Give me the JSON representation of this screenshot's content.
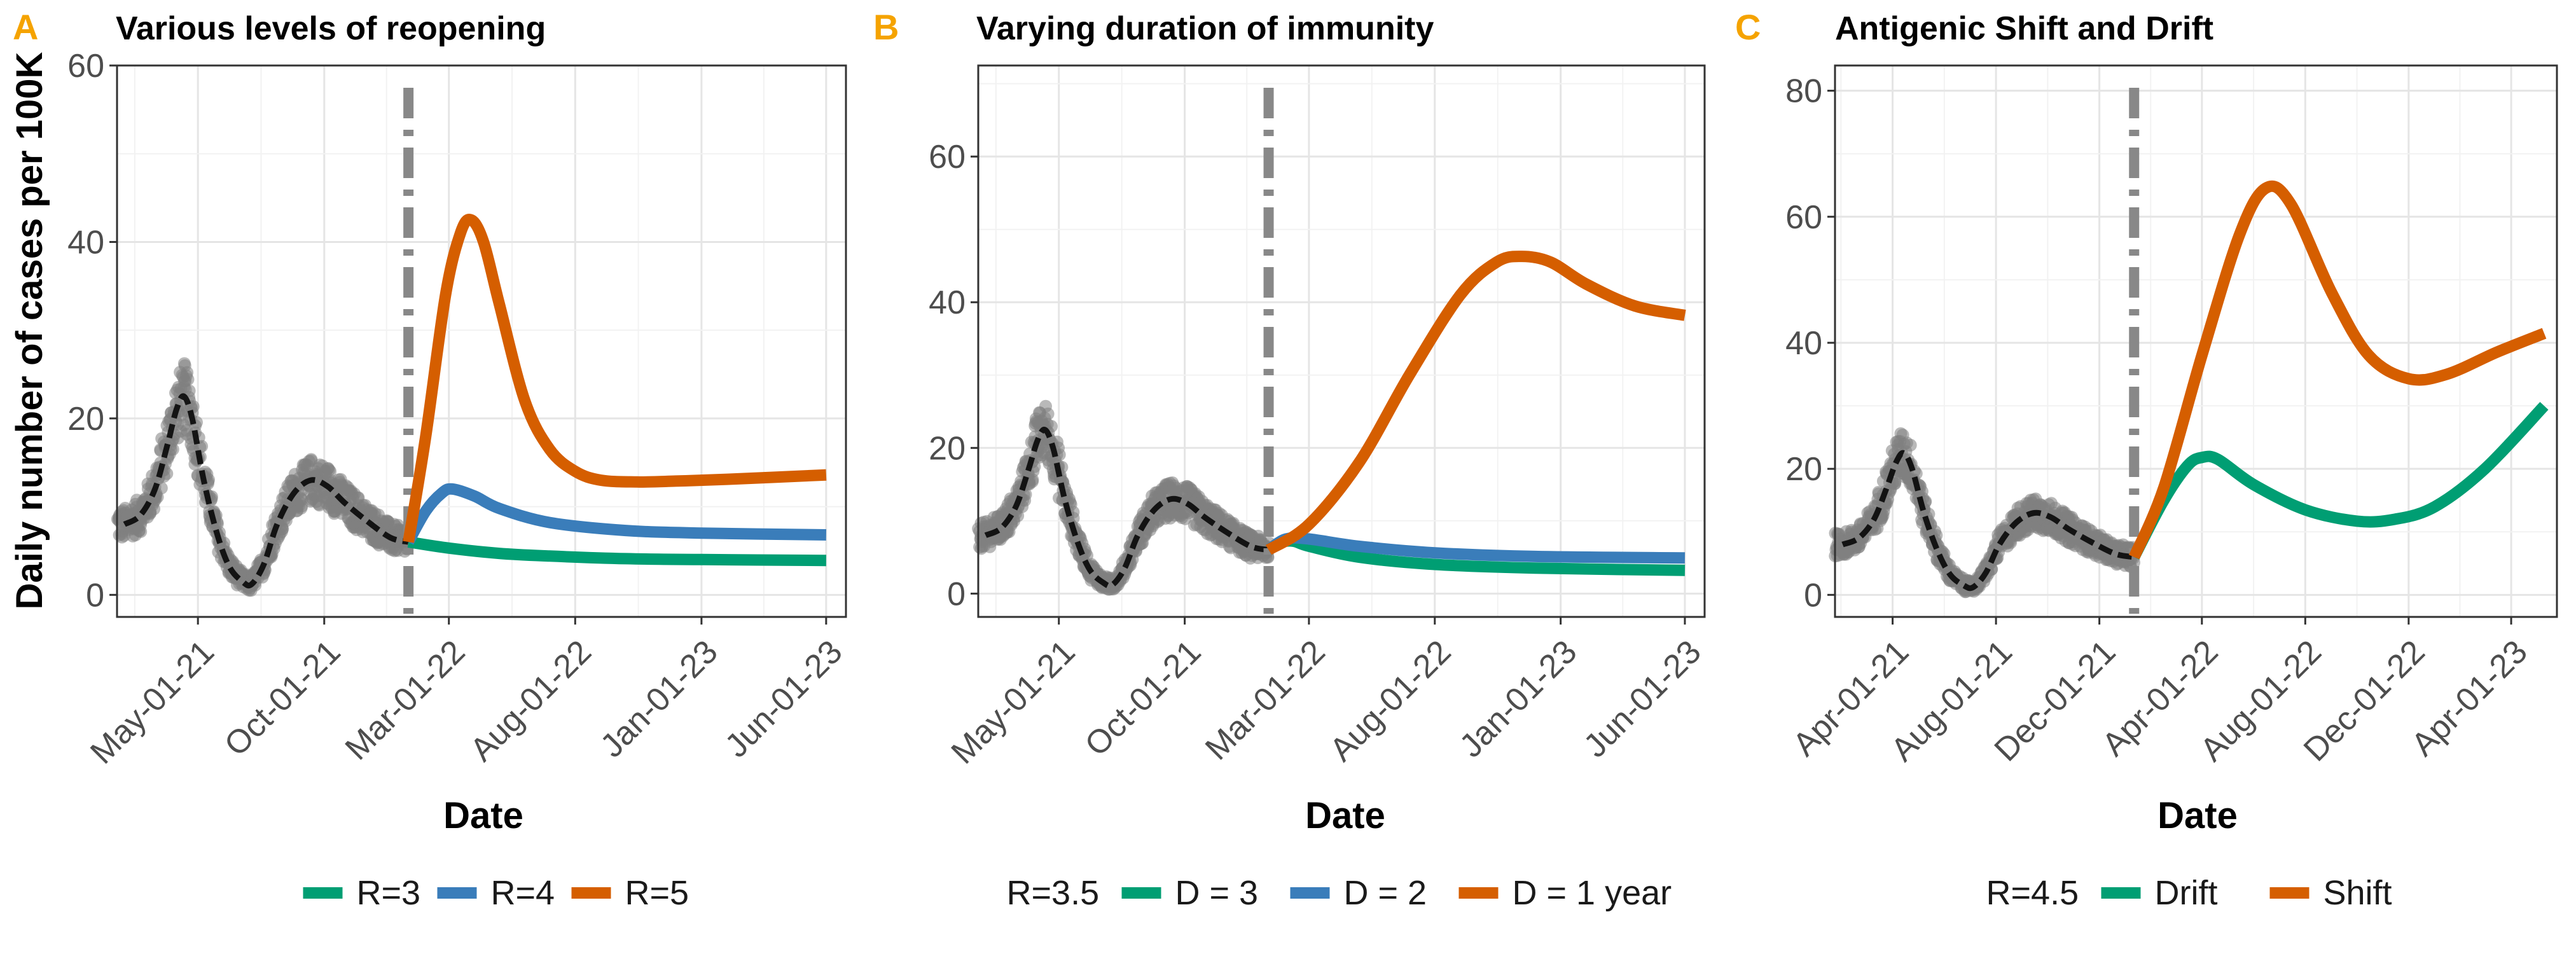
{
  "ylabel": "Daily number of cases per 100K",
  "colors": {
    "observed": "#808080",
    "fit": "#000000",
    "reopen_line": "#888888",
    "green": "#009E73",
    "blue": "#3A7DBA",
    "orange": "#D55E00",
    "panel_letter": "#F5A300"
  },
  "chart_data": [
    {
      "panel": "A",
      "type": "line",
      "title": "Various levels of reopening",
      "xlabel": "Date",
      "ylabel": "Daily number of cases per 100K",
      "x_ticks": [
        "May-01-21",
        "Oct-01-21",
        "Mar-01-22",
        "Aug-01-22",
        "Jan-01-23",
        "Jun-01-23"
      ],
      "y_ticks": [
        0,
        20,
        40,
        60
      ],
      "ylim": [
        -2.5,
        60
      ],
      "xlim": [
        "2021-01-23",
        "2023-06-25"
      ],
      "reopening_date": "2022-01-11",
      "legend_prefix": "",
      "legend": [
        "R=3",
        "R=4",
        "R=5"
      ],
      "observed_fit": [
        [
          "2021-02-01",
          8
        ],
        [
          "2021-02-20",
          9
        ],
        [
          "2021-03-10",
          12
        ],
        [
          "2021-03-25",
          17
        ],
        [
          "2021-04-05",
          21
        ],
        [
          "2021-04-14",
          22.5
        ],
        [
          "2021-04-24",
          20
        ],
        [
          "2021-05-08",
          13
        ],
        [
          "2021-05-24",
          7
        ],
        [
          "2021-06-08",
          3.2
        ],
        [
          "2021-06-24",
          1.5
        ],
        [
          "2021-07-05",
          1.2
        ],
        [
          "2021-07-20",
          3.5
        ],
        [
          "2021-08-05",
          8
        ],
        [
          "2021-08-25",
          11.5
        ],
        [
          "2021-09-15",
          13
        ],
        [
          "2021-10-05",
          12.3
        ],
        [
          "2021-10-25",
          10.5
        ],
        [
          "2021-11-20",
          8.5
        ],
        [
          "2021-12-20",
          6.5
        ],
        [
          "2022-01-11",
          6
        ]
      ],
      "series": [
        {
          "name": "R=3",
          "color": "green",
          "points": [
            [
              "2022-01-11",
              6
            ],
            [
              "2022-03-01",
              5.3
            ],
            [
              "2022-05-01",
              4.7
            ],
            [
              "2022-07-01",
              4.4
            ],
            [
              "2022-10-01",
              4.1
            ],
            [
              "2023-01-01",
              4.0
            ],
            [
              "2023-06-01",
              3.9
            ]
          ]
        },
        {
          "name": "R=4",
          "color": "blue",
          "points": [
            [
              "2022-01-11",
              6
            ],
            [
              "2022-02-01",
              9.5
            ],
            [
              "2022-02-20",
              11.5
            ],
            [
              "2022-03-05",
              12
            ],
            [
              "2022-04-01",
              11.2
            ],
            [
              "2022-05-01",
              9.8
            ],
            [
              "2022-07-01",
              8.2
            ],
            [
              "2022-10-01",
              7.3
            ],
            [
              "2023-01-01",
              7.0
            ],
            [
              "2023-06-01",
              6.8
            ]
          ]
        },
        {
          "name": "R=5",
          "color": "orange",
          "points": [
            [
              "2022-01-11",
              6
            ],
            [
              "2022-02-01",
              18
            ],
            [
              "2022-02-25",
              34
            ],
            [
              "2022-03-15",
              41
            ],
            [
              "2022-03-28",
              42.5
            ],
            [
              "2022-04-12",
              40
            ],
            [
              "2022-05-01",
              33
            ],
            [
              "2022-06-01",
              22
            ],
            [
              "2022-07-01",
              16.5
            ],
            [
              "2022-08-01",
              14
            ],
            [
              "2022-09-01",
              13
            ],
            [
              "2022-10-15",
              12.8
            ],
            [
              "2022-12-01",
              12.9
            ],
            [
              "2023-02-01",
              13.1
            ],
            [
              "2023-06-01",
              13.6
            ]
          ]
        }
      ]
    },
    {
      "panel": "B",
      "type": "line",
      "title": "Varying duration of immunity",
      "xlabel": "Date",
      "ylabel": "",
      "x_ticks": [
        "May-01-21",
        "Oct-01-21",
        "Mar-01-22",
        "Aug-01-22",
        "Jan-01-23",
        "Jun-01-23"
      ],
      "y_ticks": [
        0,
        20,
        40,
        60
      ],
      "ylim": [
        -3.2,
        72.5
      ],
      "xlim": [
        "2021-01-23",
        "2023-06-25"
      ],
      "reopening_date": "2022-01-11",
      "legend_prefix": "R=3.5",
      "legend": [
        "D = 3",
        "D = 2",
        "D = 1 year"
      ],
      "observed_fit": [
        [
          "2021-02-01",
          8
        ],
        [
          "2021-02-20",
          9
        ],
        [
          "2021-03-10",
          12
        ],
        [
          "2021-03-25",
          17
        ],
        [
          "2021-04-05",
          21
        ],
        [
          "2021-04-14",
          22.5
        ],
        [
          "2021-04-24",
          20
        ],
        [
          "2021-05-08",
          13
        ],
        [
          "2021-05-24",
          7
        ],
        [
          "2021-06-08",
          3.2
        ],
        [
          "2021-06-24",
          1.5
        ],
        [
          "2021-07-05",
          1.2
        ],
        [
          "2021-07-20",
          3.5
        ],
        [
          "2021-08-05",
          8
        ],
        [
          "2021-08-25",
          11.5
        ],
        [
          "2021-09-15",
          13
        ],
        [
          "2021-10-05",
          12.3
        ],
        [
          "2021-10-25",
          10.5
        ],
        [
          "2021-11-20",
          8.5
        ],
        [
          "2021-12-20",
          6.5
        ],
        [
          "2022-01-11",
          6
        ]
      ],
      "series": [
        {
          "name": "D = 3",
          "color": "green",
          "points": [
            [
              "2022-01-11",
              6
            ],
            [
              "2022-01-25",
              7.0
            ],
            [
              "2022-02-10",
              7.2
            ],
            [
              "2022-03-01",
              6.5
            ],
            [
              "2022-05-01",
              5.0
            ],
            [
              "2022-08-01",
              4.0
            ],
            [
              "2022-12-01",
              3.5
            ],
            [
              "2023-06-01",
              3.2
            ]
          ]
        },
        {
          "name": "D = 2",
          "color": "blue",
          "points": [
            [
              "2022-01-11",
              6
            ],
            [
              "2022-02-01",
              7.5
            ],
            [
              "2022-03-01",
              7.5
            ],
            [
              "2022-05-01",
              6.5
            ],
            [
              "2022-08-01",
              5.6
            ],
            [
              "2022-12-01",
              5.1
            ],
            [
              "2023-06-01",
              4.9
            ]
          ]
        },
        {
          "name": "D = 1 year",
          "color": "orange",
          "points": [
            [
              "2022-01-11",
              6
            ],
            [
              "2022-03-01",
              9.5
            ],
            [
              "2022-05-01",
              18
            ],
            [
              "2022-07-01",
              30
            ],
            [
              "2022-09-01",
              41
            ],
            [
              "2022-10-15",
              45.5
            ],
            [
              "2022-11-15",
              46.3
            ],
            [
              "2022-12-20",
              45.5
            ],
            [
              "2023-02-01",
              42.5
            ],
            [
              "2023-04-01",
              39.5
            ],
            [
              "2023-06-01",
              38.2
            ]
          ]
        }
      ]
    },
    {
      "panel": "C",
      "type": "line",
      "title": "Antigenic Shift and Drift",
      "xlabel": "Date",
      "ylabel": "",
      "x_ticks": [
        "Apr-01-21",
        "Aug-01-21",
        "Dec-01-21",
        "Apr-01-22",
        "Aug-01-22",
        "Dec-01-22",
        "Apr-01-23"
      ],
      "y_ticks": [
        0,
        20,
        40,
        60,
        80
      ],
      "ylim": [
        -3.5,
        84
      ],
      "xlim": [
        "2021-01-23",
        "2023-05-25"
      ],
      "reopening_date": "2022-01-11",
      "legend_prefix": "R=4.5",
      "legend": [
        "Drift",
        "Shift"
      ],
      "observed_fit": [
        [
          "2021-02-01",
          8
        ],
        [
          "2021-02-20",
          9
        ],
        [
          "2021-03-10",
          12
        ],
        [
          "2021-03-25",
          17
        ],
        [
          "2021-04-05",
          21
        ],
        [
          "2021-04-14",
          22.5
        ],
        [
          "2021-04-24",
          20
        ],
        [
          "2021-05-08",
          13
        ],
        [
          "2021-05-24",
          7
        ],
        [
          "2021-06-08",
          3.2
        ],
        [
          "2021-06-24",
          1.5
        ],
        [
          "2021-07-05",
          1.2
        ],
        [
          "2021-07-20",
          3.5
        ],
        [
          "2021-08-05",
          8
        ],
        [
          "2021-08-25",
          11.5
        ],
        [
          "2021-09-15",
          13
        ],
        [
          "2021-10-05",
          12.3
        ],
        [
          "2021-10-25",
          10.5
        ],
        [
          "2021-11-20",
          8.5
        ],
        [
          "2021-12-20",
          6.5
        ],
        [
          "2022-01-11",
          6
        ]
      ],
      "series": [
        {
          "name": "Drift",
          "color": "green",
          "points": [
            [
              "2022-01-11",
              6
            ],
            [
              "2022-02-15",
              15
            ],
            [
              "2022-03-15",
              20.5
            ],
            [
              "2022-04-01",
              21.8
            ],
            [
              "2022-04-20",
              21.5
            ],
            [
              "2022-06-01",
              17.5
            ],
            [
              "2022-08-01",
              13.5
            ],
            [
              "2022-10-01",
              11.7
            ],
            [
              "2022-11-15",
              12
            ],
            [
              "2023-01-01",
              14
            ],
            [
              "2023-03-01",
              20
            ],
            [
              "2023-05-10",
              30
            ]
          ]
        },
        {
          "name": "Shift",
          "color": "orange",
          "points": [
            [
              "2022-01-11",
              6
            ],
            [
              "2022-02-15",
              17
            ],
            [
              "2022-04-01",
              38
            ],
            [
              "2022-05-15",
              57
            ],
            [
              "2022-06-15",
              64.5
            ],
            [
              "2022-07-15",
              62
            ],
            [
              "2022-09-01",
              48
            ],
            [
              "2022-10-15",
              38
            ],
            [
              "2022-12-01",
              34.3
            ],
            [
              "2023-01-15",
              35
            ],
            [
              "2023-03-15",
              38.5
            ],
            [
              "2023-05-10",
              41.5
            ]
          ]
        }
      ]
    }
  ],
  "panels_render": [
    "A",
    "B",
    "C"
  ]
}
